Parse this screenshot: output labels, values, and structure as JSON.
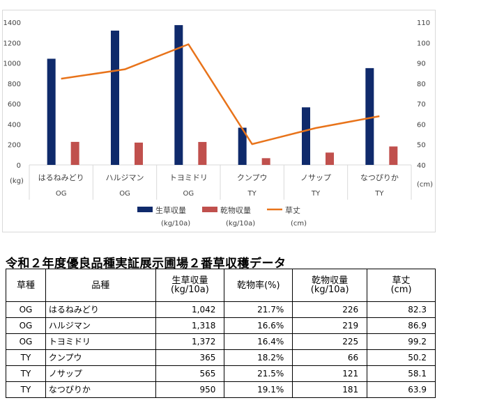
{
  "chart_data": {
    "type": "bar+line",
    "categories": [
      "はるねみどり",
      "ハルジマン",
      "トヨミドリ",
      "クンプウ",
      "ノサップ",
      "なつぴりか"
    ],
    "groups": [
      "OG",
      "OG",
      "OG",
      "TY",
      "TY",
      "TY"
    ],
    "series": [
      {
        "name": "生草収量",
        "unit": "(kg/10a)",
        "type": "bar",
        "axis": "left",
        "color": "#0f2a6b",
        "values": [
          1042,
          1318,
          1372,
          365,
          565,
          950
        ]
      },
      {
        "name": "乾物収量",
        "unit": "(kg/10a)",
        "type": "bar",
        "axis": "left",
        "color": "#c0504d",
        "values": [
          226,
          219,
          225,
          66,
          121,
          181
        ]
      },
      {
        "name": "草丈",
        "unit": "(cm)",
        "type": "line",
        "axis": "right",
        "color": "#e8731a",
        "values": [
          82.3,
          86.9,
          99.2,
          50.2,
          58.1,
          63.9
        ]
      }
    ],
    "y_left": {
      "ticks": [
        0,
        200,
        400,
        600,
        800,
        1000,
        1200,
        1400
      ],
      "unit": "(kg)",
      "range": [
        0,
        1400
      ]
    },
    "y_right": {
      "ticks": [
        40,
        50,
        60,
        70,
        80,
        90,
        100,
        110
      ],
      "unit": "(cm)",
      "range": [
        40,
        110
      ]
    },
    "legend_position": "bottom",
    "grid": false
  },
  "table": {
    "title": "令和２年度優良品種実証展示圃場２番草収穫データ",
    "headers": {
      "type": "草種",
      "variety": "品種",
      "fresh_1": "生草収量",
      "fresh_2": "(kg/10a)",
      "dm_rate": "乾物率(%)",
      "dm_1": "乾物収量",
      "dm_2": "(kg/10a)",
      "height_1": "草丈",
      "height_2": "(cm)"
    },
    "rows": [
      {
        "type": "OG",
        "variety": "はるねみどり",
        "fresh": "1,042",
        "dm_rate": "21.7%",
        "dm": "226",
        "height": "82.3"
      },
      {
        "type": "OG",
        "variety": "ハルジマン",
        "fresh": "1,318",
        "dm_rate": "16.6%",
        "dm": "219",
        "height": "86.9"
      },
      {
        "type": "OG",
        "variety": "トヨミドリ",
        "fresh": "1,372",
        "dm_rate": "16.4%",
        "dm": "225",
        "height": "99.2"
      },
      {
        "type": "TY",
        "variety": "クンプウ",
        "fresh": "365",
        "dm_rate": "18.2%",
        "dm": "66",
        "height": "50.2"
      },
      {
        "type": "TY",
        "variety": "ノサップ",
        "fresh": "565",
        "dm_rate": "21.5%",
        "dm": "121",
        "height": "58.1"
      },
      {
        "type": "TY",
        "variety": "なつぴりか",
        "fresh": "950",
        "dm_rate": "19.1%",
        "dm": "181",
        "height": "63.9"
      }
    ]
  }
}
